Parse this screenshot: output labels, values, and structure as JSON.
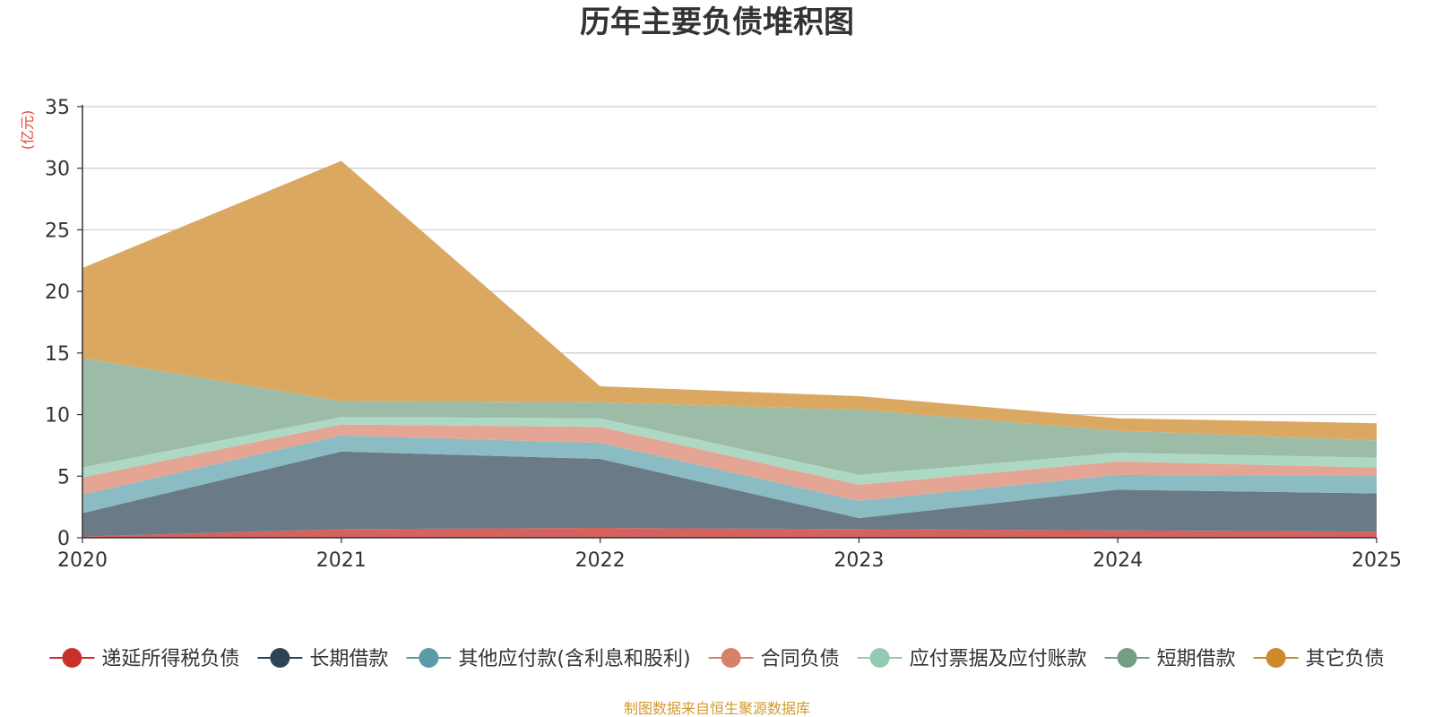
{
  "chart_data": {
    "type": "area",
    "stacked": true,
    "title": "历年主要负债堆积图",
    "unit_label": "(亿元)",
    "source_note": "制图数据来自恒生聚源数据库",
    "x": [
      "2020",
      "2021",
      "2022",
      "2023",
      "2024",
      "2025"
    ],
    "y_ticks": [
      "0",
      "5",
      "10",
      "15",
      "20",
      "25",
      "30",
      "35"
    ],
    "ylim": [
      0,
      35
    ],
    "grid": true,
    "legend_position": "bottom",
    "series": [
      {
        "name": "递延所得税负债",
        "color": "#c9302c",
        "fill_color": "#d4625e",
        "values": [
          0.1,
          0.7,
          0.8,
          0.7,
          0.6,
          0.5
        ]
      },
      {
        "name": "长期借款",
        "color": "#2d4356",
        "fill_color": "#6b7a87",
        "values": [
          1.9,
          6.3,
          5.6,
          0.9,
          3.3,
          3.1
        ]
      },
      {
        "name": "其他应付款(含利息和股利)",
        "color": "#5a9ba8",
        "fill_color": "#8bbcc3",
        "values": [
          1.5,
          1.3,
          1.3,
          1.4,
          1.2,
          1.4
        ]
      },
      {
        "name": "合同负债",
        "color": "#d6816a",
        "fill_color": "#e4a594",
        "values": [
          1.4,
          0.9,
          1.3,
          1.3,
          1.1,
          0.7
        ]
      },
      {
        "name": "应付票据及应付账款",
        "color": "#94cbb0",
        "fill_color": "#add9c4",
        "values": [
          0.8,
          0.6,
          0.7,
          0.8,
          0.7,
          0.8
        ]
      },
      {
        "name": "短期借款",
        "color": "#739e85",
        "fill_color": "#9dbca7",
        "values": [
          8.9,
          1.3,
          1.3,
          5.3,
          1.8,
          1.4
        ]
      },
      {
        "name": "其它负债",
        "color": "#cc8a28",
        "fill_color": "#dba862",
        "values": [
          7.3,
          19.5,
          1.3,
          1.1,
          1.0,
          1.4
        ]
      }
    ]
  }
}
